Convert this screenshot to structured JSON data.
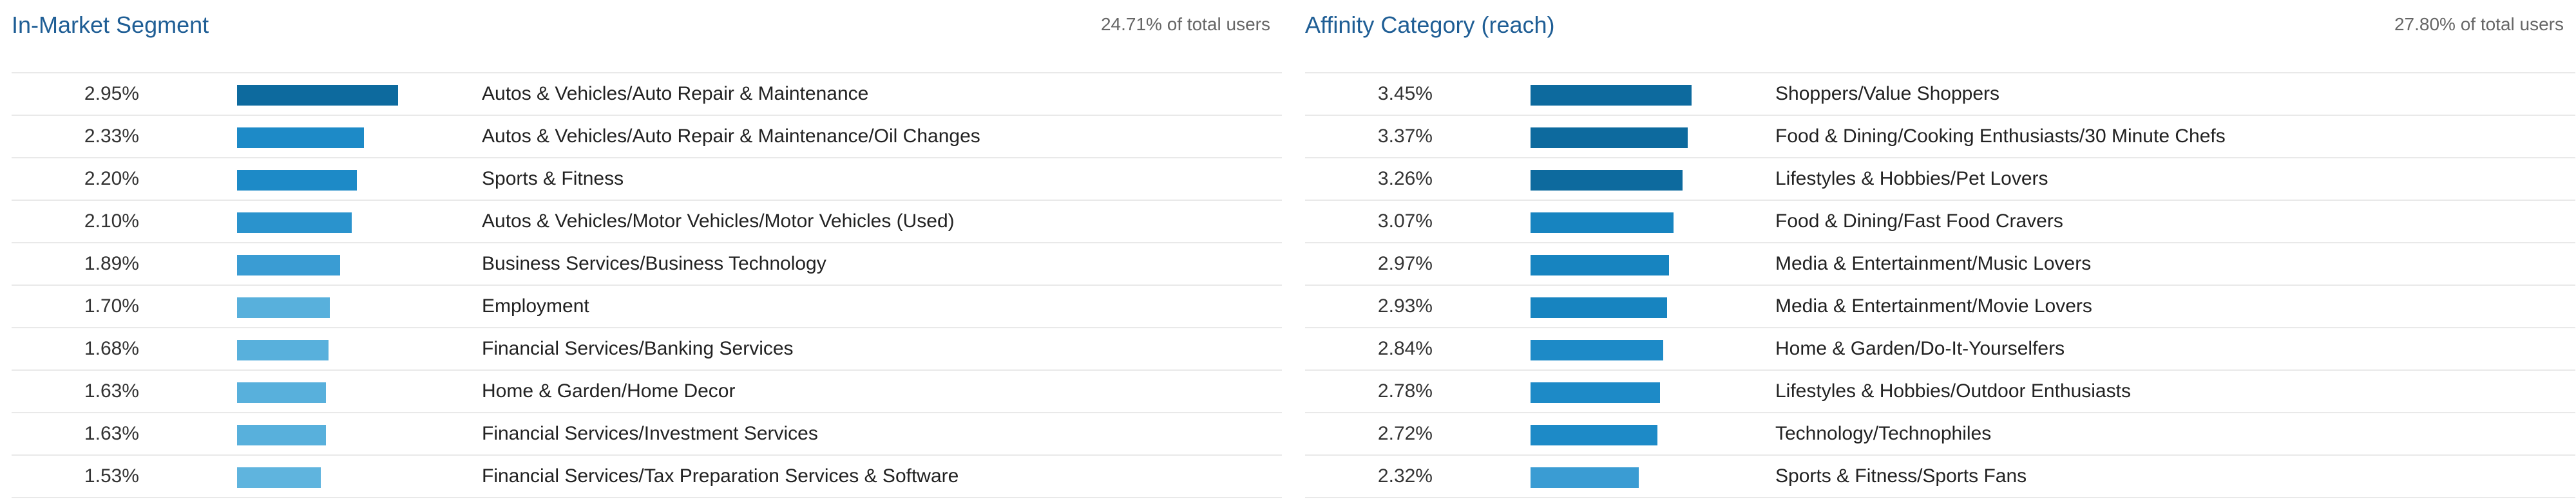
{
  "chart_data": [
    {
      "type": "bar",
      "title": "In-Market Segment",
      "subtitle": "24.71% of total users",
      "orientation": "horizontal",
      "max_value": 2.95,
      "categories": [
        "Autos & Vehicles/Auto Repair & Maintenance",
        "Autos & Vehicles/Auto Repair & Maintenance/Oil Changes",
        "Sports & Fitness",
        "Autos & Vehicles/Motor Vehicles/Motor Vehicles (Used)",
        "Business Services/Business Technology",
        "Employment",
        "Financial Services/Banking Services",
        "Home & Garden/Home Decor",
        "Financial Services/Investment Services",
        "Financial Services/Tax Preparation Services & Software"
      ],
      "values": [
        2.95,
        2.33,
        2.2,
        2.1,
        1.89,
        1.7,
        1.68,
        1.63,
        1.63,
        1.53
      ],
      "value_labels": [
        "2.95%",
        "2.33%",
        "2.20%",
        "2.10%",
        "1.89%",
        "1.70%",
        "1.68%",
        "1.63%",
        "1.63%",
        "1.53%"
      ],
      "bar_colors": [
        "#0d6a9e",
        "#1d8ac7",
        "#1d8ac7",
        "#2a93cd",
        "#3a9cd3",
        "#58b0dc",
        "#58b0dc",
        "#58b0dc",
        "#58b0dc",
        "#5fb4de"
      ]
    },
    {
      "type": "bar",
      "title": "Affinity Category (reach)",
      "subtitle": "27.80% of total users",
      "orientation": "horizontal",
      "max_value": 3.45,
      "categories": [
        "Shoppers/Value Shoppers",
        "Food & Dining/Cooking Enthusiasts/30 Minute Chefs",
        "Lifestyles & Hobbies/Pet Lovers",
        "Food & Dining/Fast Food Cravers",
        "Media & Entertainment/Music Lovers",
        "Media & Entertainment/Movie Lovers",
        "Home & Garden/Do-It-Yourselfers",
        "Lifestyles & Hobbies/Outdoor Enthusiasts",
        "Technology/Technophiles",
        "Sports & Fitness/Sports Fans"
      ],
      "values": [
        3.45,
        3.37,
        3.26,
        3.07,
        2.97,
        2.93,
        2.84,
        2.78,
        2.72,
        2.32
      ],
      "value_labels": [
        "3.45%",
        "3.37%",
        "3.26%",
        "3.07%",
        "2.97%",
        "2.93%",
        "2.84%",
        "2.78%",
        "2.72%",
        "2.32%"
      ],
      "bar_colors": [
        "#0d6a9e",
        "#0d6a9e",
        "#0d6a9e",
        "#1784c0",
        "#1784c0",
        "#1784c0",
        "#1d8ac7",
        "#1d8ac7",
        "#1d8ac7",
        "#3a9cd3"
      ]
    }
  ]
}
